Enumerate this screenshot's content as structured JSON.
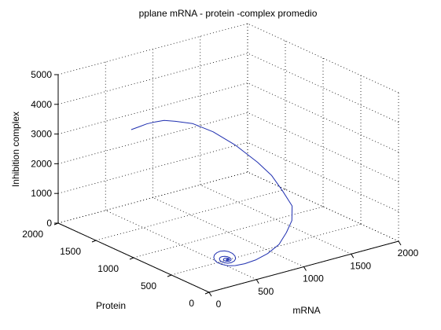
{
  "chart_data": {
    "type": "line",
    "title": "pplane mRNA - protein -complex promedio",
    "xlabel": "mRNA",
    "ylabel": "Protein",
    "zlabel": "Inhibition complex",
    "xlim": [
      0,
      2000
    ],
    "ylim": [
      0,
      2000
    ],
    "zlim": [
      0,
      5000
    ],
    "x_ticks": [
      "0",
      "500",
      "1000",
      "1500",
      "2000"
    ],
    "y_ticks": [
      "0",
      "500",
      "1000",
      "1500",
      "2000"
    ],
    "z_ticks": [
      "0",
      "1000",
      "2000",
      "3000",
      "4000",
      "5000"
    ],
    "grid": true,
    "line_color": "#1f2fb0",
    "series": [
      {
        "x": [
          420,
          480,
          520,
          560,
          600,
          640,
          700,
          760,
          800,
          830,
          860,
          880,
          900,
          880,
          820,
          750,
          650,
          560,
          480,
          420,
          380,
          355,
          345,
          350,
          360,
          375,
          395,
          420,
          445,
          470,
          490,
          500,
          495,
          480,
          455,
          430,
          410,
          395,
          390,
          392,
          400,
          413,
          428,
          445,
          458,
          465,
          462,
          452,
          440,
          428,
          418,
          414,
          416,
          424,
          436,
          448,
          455,
          453,
          445,
          436,
          430,
          432,
          440,
          446,
          442,
          436,
          438
        ],
        "y": [
          1560,
          1520,
          1480,
          1420,
          1350,
          1250,
          1100,
          900,
          650,
          400,
          250,
          130,
          30,
          8,
          5,
          15,
          40,
          80,
          130,
          180,
          230,
          280,
          330,
          365,
          390,
          400,
          395,
          380,
          355,
          330,
          305,
          285,
          270,
          268,
          275,
          292,
          312,
          332,
          348,
          356,
          354,
          343,
          328,
          312,
          300,
          292,
          290,
          294,
          303,
          314,
          324,
          330,
          331,
          326,
          317,
          308,
          302,
          300,
          303,
          309,
          314,
          315,
          311,
          306,
          304,
          307,
          308
        ],
        "z": [
          3300,
          3400,
          3500,
          3600,
          3700,
          3750,
          3800,
          3700,
          3500,
          3200,
          2900,
          2500,
          2100,
          1650,
          1300,
          950,
          700,
          520,
          400,
          330,
          300,
          310,
          330,
          360,
          410,
          470,
          530,
          580,
          600,
          580,
          530,
          460,
          390,
          330,
          290,
          270,
          280,
          305,
          340,
          380,
          420,
          450,
          460,
          450,
          420,
          380,
          345,
          320,
          310,
          315,
          330,
          355,
          380,
          400,
          408,
          400,
          380,
          360,
          345,
          340,
          348,
          362,
          375,
          380,
          372,
          362,
          366
        ]
      }
    ]
  }
}
